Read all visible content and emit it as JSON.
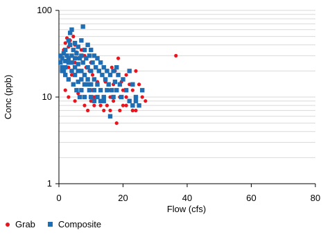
{
  "chart_data": {
    "type": "scatter",
    "title": "",
    "xlabel": "Flow (cfs)",
    "ylabel": "Conc (ppb)",
    "xlim": [
      0,
      80
    ],
    "ylim": [
      1,
      100
    ],
    "yscale": "log",
    "x_ticks": [
      "0",
      "20",
      "40",
      "60",
      "80"
    ],
    "y_ticks": [
      "1",
      "10",
      "100"
    ],
    "grid": "horizontal minor log gridlines",
    "legend_position": "bottom-left",
    "series": [
      {
        "name": "Grab",
        "marker": "circle",
        "color": "#e8141e",
        "points": [
          [
            1,
            28
          ],
          [
            1.5,
            35
          ],
          [
            2,
            42
          ],
          [
            2.5,
            48
          ],
          [
            3,
            38
          ],
          [
            3,
            22
          ],
          [
            3.5,
            45
          ],
          [
            4,
            30
          ],
          [
            4,
            18
          ],
          [
            4.5,
            50
          ],
          [
            5,
            40
          ],
          [
            5,
            25
          ],
          [
            5.5,
            33
          ],
          [
            6,
            28
          ],
          [
            6,
            15
          ],
          [
            6.5,
            20
          ],
          [
            7,
            35
          ],
          [
            7,
            12
          ],
          [
            7.5,
            25
          ],
          [
            8,
            30
          ],
          [
            8,
            18
          ],
          [
            8.5,
            22
          ],
          [
            9,
            14
          ],
          [
            9,
            40
          ],
          [
            9.5,
            20
          ],
          [
            10,
            25
          ],
          [
            10,
            12
          ],
          [
            10.5,
            18
          ],
          [
            11,
            30
          ],
          [
            11,
            10
          ],
          [
            11.5,
            22
          ],
          [
            12,
            15
          ],
          [
            12,
            28
          ],
          [
            12.5,
            20
          ],
          [
            13,
            12
          ],
          [
            13,
            25
          ],
          [
            13.5,
            18
          ],
          [
            14,
            10
          ],
          [
            14,
            22
          ],
          [
            14.5,
            15
          ],
          [
            15,
            20
          ],
          [
            15,
            8
          ],
          [
            15.5,
            12
          ],
          [
            16,
            18
          ],
          [
            16,
            10
          ],
          [
            16.5,
            22
          ],
          [
            17,
            14
          ],
          [
            17,
            9
          ],
          [
            17.5,
            20
          ],
          [
            18,
            12
          ],
          [
            18,
            5
          ],
          [
            18.5,
            28
          ],
          [
            19,
            10
          ],
          [
            19.5,
            15
          ],
          [
            20,
            12
          ],
          [
            20,
            8
          ],
          [
            21,
            18
          ],
          [
            21,
            10
          ],
          [
            22,
            14
          ],
          [
            22,
            9
          ],
          [
            23,
            12
          ],
          [
            23,
            7
          ],
          [
            24,
            20
          ],
          [
            24,
            10
          ],
          [
            25,
            8
          ],
          [
            25,
            14
          ],
          [
            26,
            10
          ],
          [
            27,
            9
          ],
          [
            36.5,
            30
          ],
          [
            2,
            12
          ],
          [
            3,
            10
          ],
          [
            5,
            9
          ],
          [
            6,
            11
          ],
          [
            8,
            8
          ],
          [
            9,
            7
          ],
          [
            10,
            9
          ],
          [
            11,
            8
          ],
          [
            13,
            8
          ],
          [
            14,
            7
          ],
          [
            16,
            7
          ],
          [
            19,
            7
          ],
          [
            21,
            8
          ],
          [
            23,
            7
          ],
          [
            24,
            7
          ]
        ]
      },
      {
        "name": "Composite",
        "marker": "square",
        "color": "#1f6eb4",
        "points": [
          [
            0.5,
            30
          ],
          [
            0.5,
            25
          ],
          [
            1,
            28
          ],
          [
            1,
            22
          ],
          [
            1.5,
            32
          ],
          [
            1.5,
            20
          ],
          [
            2,
            26
          ],
          [
            2,
            35
          ],
          [
            2,
            18
          ],
          [
            2.5,
            30
          ],
          [
            3,
            45
          ],
          [
            3,
            25
          ],
          [
            3,
            16
          ],
          [
            3.5,
            40
          ],
          [
            3.5,
            55
          ],
          [
            4,
            60
          ],
          [
            4,
            30
          ],
          [
            4,
            20
          ],
          [
            4.5,
            35
          ],
          [
            4.5,
            14
          ],
          [
            5,
            42
          ],
          [
            5,
            28
          ],
          [
            5,
            18
          ],
          [
            5.5,
            32
          ],
          [
            5.5,
            12
          ],
          [
            6,
            38
          ],
          [
            6,
            24
          ],
          [
            6,
            15
          ],
          [
            6.5,
            28
          ],
          [
            6.5,
            10
          ],
          [
            7,
            45
          ],
          [
            7,
            30
          ],
          [
            7,
            20
          ],
          [
            7,
            12
          ],
          [
            7.5,
            65
          ],
          [
            7.5,
            25
          ],
          [
            8,
            35
          ],
          [
            8,
            18
          ],
          [
            8,
            10
          ],
          [
            8.5,
            28
          ],
          [
            9,
            40
          ],
          [
            9,
            22
          ],
          [
            9,
            14
          ],
          [
            9.5,
            30
          ],
          [
            9.5,
            12
          ],
          [
            10,
            35
          ],
          [
            10,
            20
          ],
          [
            10,
            10
          ],
          [
            10.5,
            25
          ],
          [
            11,
            30
          ],
          [
            11,
            16
          ],
          [
            11,
            9
          ],
          [
            11.5,
            22
          ],
          [
            12,
            28
          ],
          [
            12,
            14
          ],
          [
            12.5,
            20
          ],
          [
            13,
            25
          ],
          [
            13,
            12
          ],
          [
            13.5,
            18
          ],
          [
            14,
            22
          ],
          [
            14,
            10
          ],
          [
            14.5,
            16
          ],
          [
            15,
            20
          ],
          [
            15,
            12
          ],
          [
            15.5,
            14
          ],
          [
            16,
            18
          ],
          [
            16,
            6
          ],
          [
            16.5,
            12
          ],
          [
            17,
            20
          ],
          [
            17,
            10
          ],
          [
            17.5,
            15
          ],
          [
            18,
            22
          ],
          [
            18,
            12
          ],
          [
            18.5,
            18
          ],
          [
            19,
            14
          ],
          [
            19.5,
            10
          ],
          [
            20,
            16
          ],
          [
            21,
            12
          ],
          [
            22,
            20
          ],
          [
            22,
            9
          ],
          [
            23,
            14
          ],
          [
            23,
            8
          ],
          [
            24,
            10
          ],
          [
            24,
            9
          ],
          [
            25,
            8
          ],
          [
            26,
            12
          ],
          [
            1,
            20
          ],
          [
            2,
            22
          ],
          [
            3,
            28
          ],
          [
            4,
            25
          ],
          [
            5,
            22
          ],
          [
            6,
            20
          ],
          [
            7,
            16
          ],
          [
            8,
            14
          ],
          [
            9,
            16
          ],
          [
            10,
            14
          ],
          [
            11,
            12
          ],
          [
            12,
            10
          ],
          [
            13,
            9
          ],
          [
            14,
            9
          ]
        ]
      }
    ]
  }
}
